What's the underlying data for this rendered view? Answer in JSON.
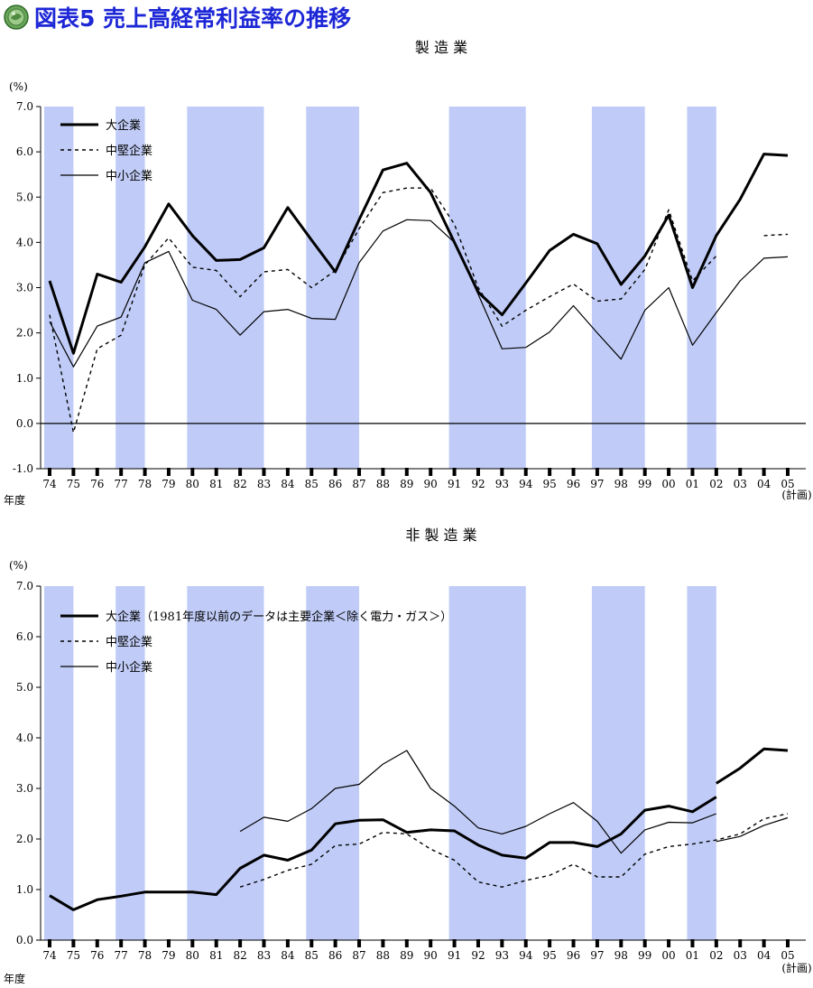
{
  "page": {
    "title": "図表5 売上高経常利益率の推移",
    "logo_icon": "green-seal-icon",
    "band_color": "#c0ccf7",
    "title_color": "#1d27d6"
  },
  "chart_data": [
    {
      "type": "line",
      "title": "製 造 業",
      "unit_label": "(%)",
      "xlabel": "年度",
      "x_note": "(計画)",
      "categories": [
        "74",
        "75",
        "76",
        "77",
        "78",
        "79",
        "80",
        "81",
        "82",
        "83",
        "84",
        "85",
        "86",
        "87",
        "88",
        "89",
        "90",
        "91",
        "92",
        "93",
        "94",
        "95",
        "96",
        "97",
        "98",
        "99",
        "00",
        "01",
        "02",
        "03",
        "04",
        "05"
      ],
      "ylim": [
        -1.0,
        7.0
      ],
      "yticks": [
        "-1.0",
        "0.0",
        "1.0",
        "2.0",
        "3.0",
        "4.0",
        "5.0",
        "6.0",
        "7.0"
      ],
      "zero_line": true,
      "shaded_periods": [
        [
          "74",
          "75"
        ],
        [
          "77",
          "78"
        ],
        [
          "80",
          "83"
        ],
        [
          "85",
          "87"
        ],
        [
          "91",
          "94"
        ],
        [
          "97",
          "99"
        ],
        [
          "01",
          "02"
        ]
      ],
      "legend_placement": "top-left",
      "series": [
        {
          "name": "大企業",
          "style": "thick",
          "values": [
            3.15,
            1.55,
            3.3,
            3.12,
            3.9,
            4.85,
            4.15,
            3.6,
            3.62,
            3.88,
            4.77,
            4.05,
            3.35,
            4.5,
            5.6,
            5.75,
            5.1,
            4.0,
            2.9,
            2.4,
            3.1,
            3.82,
            4.18,
            3.97,
            3.07,
            3.7,
            4.6,
            3.0,
            4.15,
            4.95,
            5.95,
            5.92
          ]
        },
        {
          "name": "中堅企業",
          "style": "dashed",
          "values": [
            2.4,
            -0.2,
            1.65,
            1.95,
            3.5,
            4.1,
            3.45,
            3.38,
            2.8,
            3.35,
            3.4,
            3.0,
            3.38,
            4.3,
            5.1,
            5.2,
            5.2,
            4.4,
            3.0,
            2.15,
            2.5,
            2.8,
            3.08,
            2.7,
            2.75,
            3.4,
            4.72,
            3.15,
            3.7,
            null,
            4.15,
            4.18
          ]
        },
        {
          "name": "中小企業",
          "style": "thin",
          "values": [
            2.25,
            1.25,
            2.15,
            2.35,
            3.55,
            3.8,
            2.72,
            2.52,
            1.95,
            2.47,
            2.52,
            2.32,
            2.3,
            3.55,
            4.25,
            4.5,
            4.48,
            4.0,
            2.85,
            1.65,
            1.68,
            2.02,
            2.6,
            2.0,
            1.42,
            2.5,
            3.0,
            1.73,
            2.45,
            3.15,
            3.65,
            3.68
          ]
        }
      ]
    },
    {
      "type": "line",
      "title": "非 製 造 業",
      "unit_label": "(%)",
      "xlabel": "年度",
      "x_note": "(計画)",
      "categories": [
        "74",
        "75",
        "76",
        "77",
        "78",
        "79",
        "80",
        "81",
        "82",
        "83",
        "84",
        "85",
        "86",
        "87",
        "88",
        "89",
        "90",
        "91",
        "92",
        "93",
        "94",
        "95",
        "96",
        "97",
        "98",
        "99",
        "00",
        "01",
        "02",
        "03",
        "04",
        "05"
      ],
      "ylim": [
        0.0,
        7.0
      ],
      "yticks": [
        "0.0",
        "1.0",
        "2.0",
        "3.0",
        "4.0",
        "5.0",
        "6.0",
        "7.0"
      ],
      "zero_line": false,
      "shaded_periods": [
        [
          "74",
          "75"
        ],
        [
          "77",
          "78"
        ],
        [
          "80",
          "83"
        ],
        [
          "85",
          "87"
        ],
        [
          "91",
          "94"
        ],
        [
          "97",
          "99"
        ],
        [
          "01",
          "02"
        ]
      ],
      "legend_placement": "top-left",
      "series": [
        {
          "name": "大企業（1981年度以前のデータは主要企業＜除く電力・ガス＞）",
          "style": "thick",
          "values": [
            0.88,
            0.6,
            0.8,
            0.87,
            0.95,
            0.95,
            0.95,
            0.9,
            1.42,
            1.68,
            1.58,
            1.78,
            2.3,
            2.37,
            2.38,
            2.13,
            2.18,
            2.16,
            1.88,
            1.68,
            1.62,
            1.93,
            1.93,
            1.85,
            2.1,
            2.57,
            2.65,
            2.54,
            2.83,
            null,
            null,
            null
          ]
        },
        {
          "name": "",
          "style": "thick",
          "values": [
            null,
            null,
            null,
            null,
            null,
            null,
            null,
            null,
            null,
            null,
            null,
            null,
            null,
            null,
            null,
            null,
            null,
            null,
            null,
            null,
            null,
            null,
            null,
            null,
            null,
            null,
            null,
            null,
            3.1,
            3.4,
            3.78,
            3.75
          ]
        },
        {
          "name": "中堅企業",
          "style": "dashed",
          "values": [
            null,
            null,
            null,
            null,
            null,
            null,
            null,
            null,
            1.05,
            1.2,
            1.38,
            1.5,
            1.87,
            1.9,
            2.13,
            2.1,
            1.8,
            1.58,
            1.15,
            1.05,
            1.18,
            1.28,
            1.5,
            1.25,
            1.25,
            1.7,
            1.85,
            1.9,
            1.98,
            2.1,
            2.4,
            2.5
          ]
        },
        {
          "name": "中小企業",
          "style": "thin",
          "values": [
            null,
            null,
            null,
            null,
            null,
            null,
            null,
            null,
            2.15,
            2.43,
            2.35,
            2.6,
            3.0,
            3.08,
            3.48,
            3.75,
            3.0,
            2.65,
            2.22,
            2.1,
            2.25,
            2.5,
            2.72,
            2.35,
            1.72,
            2.18,
            2.33,
            2.32,
            2.5,
            null,
            null,
            null
          ]
        },
        {
          "name": "",
          "style": "thin",
          "values": [
            null,
            null,
            null,
            null,
            null,
            null,
            null,
            null,
            null,
            null,
            null,
            null,
            null,
            null,
            null,
            null,
            null,
            null,
            null,
            null,
            null,
            null,
            null,
            null,
            null,
            null,
            null,
            null,
            1.95,
            2.05,
            2.27,
            2.42
          ]
        }
      ]
    }
  ]
}
